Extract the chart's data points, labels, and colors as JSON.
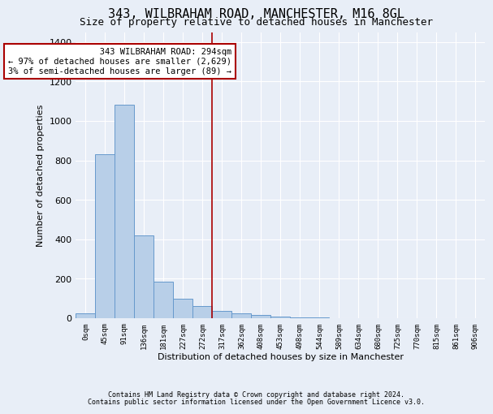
{
  "title": "343, WILBRAHAM ROAD, MANCHESTER, M16 8GL",
  "subtitle": "Size of property relative to detached houses in Manchester",
  "xlabel": "Distribution of detached houses by size in Manchester",
  "ylabel": "Number of detached properties",
  "footer_line1": "Contains HM Land Registry data © Crown copyright and database right 2024.",
  "footer_line2": "Contains public sector information licensed under the Open Government Licence v3.0.",
  "bar_labels": [
    "0sqm",
    "45sqm",
    "91sqm",
    "136sqm",
    "181sqm",
    "227sqm",
    "272sqm",
    "317sqm",
    "362sqm",
    "408sqm",
    "453sqm",
    "498sqm",
    "544sqm",
    "589sqm",
    "634sqm",
    "680sqm",
    "725sqm",
    "770sqm",
    "815sqm",
    "861sqm",
    "906sqm"
  ],
  "bar_values": [
    25,
    830,
    1080,
    420,
    185,
    100,
    60,
    35,
    25,
    15,
    8,
    5,
    5,
    0,
    0,
    0,
    0,
    0,
    0,
    0,
    0
  ],
  "bar_color": "#b8cfe8",
  "bar_edge_color": "#6699cc",
  "vline_x": 6.5,
  "vline_color": "#aa0000",
  "annotation_line1": "   343 WILBRAHAM ROAD: 294sqm",
  "annotation_line2": "← 97% of detached houses are smaller (2,629)",
  "annotation_line3": "3% of semi-detached houses are larger (89) →",
  "annotation_box_color": "#aa0000",
  "ylim": [
    0,
    1450
  ],
  "yticks": [
    0,
    200,
    400,
    600,
    800,
    1000,
    1200,
    1400
  ],
  "bg_color": "#e8eef7",
  "plot_bg_color": "#e8eef7",
  "grid_color": "#ffffff",
  "title_fontsize": 11,
  "subtitle_fontsize": 9
}
